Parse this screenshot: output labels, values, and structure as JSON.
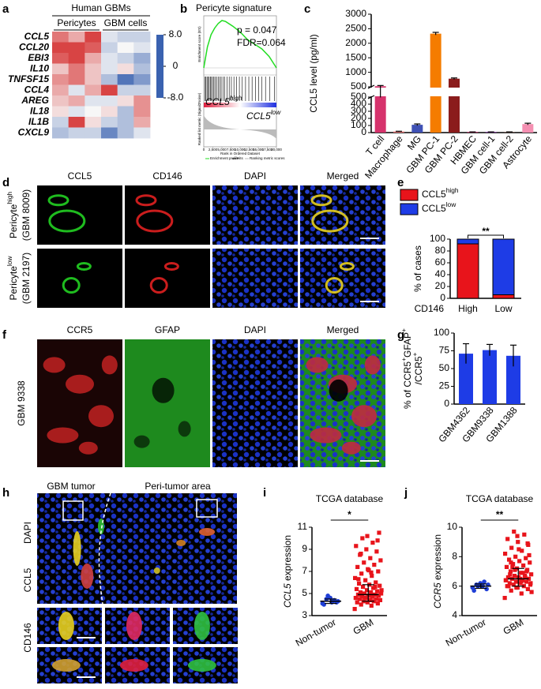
{
  "panel_labels": [
    "a",
    "b",
    "c",
    "d",
    "e",
    "f",
    "g",
    "h",
    "i",
    "j"
  ],
  "d": {
    "columns": [
      "CCL5",
      "CD146",
      "DAPI",
      "Merged"
    ],
    "column_colors": [
      "#1aa01a",
      "#e01010",
      "#1a2fd0",
      "#000000"
    ],
    "rows": [
      {
        "label": "Pericyte",
        "sup": "high",
        "sample": "(GBM 8009)"
      },
      {
        "label": "Pericyte",
        "sup": "low",
        "sample": "(GBM 2197)"
      }
    ]
  },
  "f": {
    "columns": [
      "CCR5",
      "GFAP",
      "DAPI",
      "Merged"
    ],
    "column_colors": [
      "#e01010",
      "#1aa01a",
      "#1a2fd0",
      "#000000"
    ],
    "row_label": "GBM 9338"
  },
  "h": {
    "top_labels": [
      "GBM tumor",
      "Peri-tumor area"
    ],
    "side_labels": [
      "CD146",
      "CCL5",
      "DAPI"
    ],
    "side_colors": [
      "#e01010",
      "#1aa01a",
      "#1a2fd0"
    ]
  },
  "chart_data": [
    {
      "type": "heatmap",
      "title": "Human GBMs",
      "groups": [
        "Pericytes",
        "GBM cells"
      ],
      "group_sizes": [
        3,
        3
      ],
      "rows": [
        "CCL5",
        "CCL20",
        "EBI3",
        "IL10",
        "TNFSF15",
        "CCL4",
        "AREG",
        "IL18",
        "IL1B",
        "CXCL9"
      ],
      "row_colors": [
        "#e01010",
        "#000000",
        "#000000",
        "#000000",
        "#000000",
        "#000000",
        "#000000",
        "#000000",
        "#000000",
        "#000000"
      ],
      "values": [
        [
          5,
          3,
          7,
          -1,
          -2,
          -2
        ],
        [
          7,
          7,
          6,
          -2,
          0,
          -1
        ],
        [
          6,
          7,
          3,
          -1,
          -2,
          -4
        ],
        [
          2,
          5,
          2,
          -1,
          1,
          -3
        ],
        [
          4,
          5,
          2,
          -3,
          -7,
          -5
        ],
        [
          3,
          -1,
          3,
          7,
          -2,
          -2
        ],
        [
          2,
          3,
          -1,
          -1,
          1,
          4
        ],
        [
          1,
          -1,
          0,
          1,
          -3,
          4
        ],
        [
          -2,
          7,
          1,
          -2,
          -3,
          3
        ],
        [
          -3,
          -2,
          -2,
          -6,
          -3,
          -1
        ]
      ],
      "colormap": [
        "#3a62b0",
        "#f7f7f7",
        "#d42a2a"
      ],
      "clim": [
        -8,
        8
      ],
      "cticks": [
        {
          "value": 8,
          "label": "8.0"
        },
        0,
        {
          "value": -8,
          "label": "-8.0"
        }
      ]
    },
    {
      "type": "gsea",
      "title": "Pericyte signature",
      "annotations": [
        "p = 0.047",
        "FDR=0.064"
      ],
      "x": [
        0,
        1000,
        2000,
        3000,
        4000,
        5000,
        6000,
        8000,
        10000,
        12000,
        14000,
        16000,
        18000,
        20000
      ],
      "values": [
        0,
        0.22,
        0.35,
        0.42,
        0.47,
        0.5,
        0.49,
        0.44,
        0.38,
        0.3,
        0.25,
        0.2,
        0.12,
        0.0
      ],
      "xlim": [
        0,
        20000
      ],
      "ylim": [
        -0.05,
        0.55
      ],
      "color": "#22dd22",
      "xticks": [
        0,
        {
          "value": 2500,
          "label": "2,500"
        },
        {
          "value": 5000,
          "label": "5,000"
        },
        {
          "value": 7500,
          "label": "7,500"
        },
        {
          "value": 10000,
          "label": "10,000"
        },
        {
          "value": 12500,
          "label": "12,500"
        },
        {
          "value": 15000,
          "label": "15,000"
        },
        {
          "value": 17500,
          "label": "17,500"
        },
        {
          "value": 20000,
          "label": "20,000"
        }
      ],
      "xlabel": "Rank in Ordered Dataset",
      "ylabel_top": "Enrichment score (ES)",
      "ylabel_bottom": "Ranked list metric (Signal2Noise)",
      "hits": [
        300,
        600,
        900,
        1200,
        1500,
        1800,
        2100,
        2500,
        2800,
        3200,
        3600,
        4000,
        4400,
        4800,
        5300,
        5800,
        6400,
        7000,
        7600,
        8300,
        9000,
        9800,
        10600,
        11500,
        12400,
        13300,
        14200,
        15100,
        16000,
        17000,
        18200,
        19500
      ],
      "high_label": {
        "text": "CCL5",
        "sup": "high"
      },
      "low_label": {
        "text": "CCL5",
        "sup": "low"
      },
      "legend": [
        "Enrichment profile",
        "Hits",
        "Ranking metric scores"
      ]
    },
    {
      "type": "bar",
      "categories": [
        "T cell",
        "Macrophage",
        "MG",
        "GBM PC-1",
        "GBM PC-2",
        "HBMEC",
        "GBM cell-1",
        "GBM cell-2",
        "Astrocyte"
      ],
      "values": [
        520,
        15,
        110,
        2330,
        780,
        8,
        8,
        8,
        120
      ],
      "errors": [
        25,
        4,
        12,
        45,
        25,
        2,
        2,
        2,
        12
      ],
      "colors": [
        "#d6336c",
        "#e57373",
        "#3f51b5",
        "#f57c00",
        "#8b1c1c",
        "#c2185b",
        "#7b1fa2",
        "#5d4037",
        "#f48fb1"
      ],
      "ylabel": "CCL5 level (pg/ml)",
      "ylim": [
        0,
        3000
      ],
      "break": 500,
      "yticks": [
        0,
        100,
        200,
        300,
        400,
        500
      ],
      "yticks_upper": [
        500,
        1000,
        1500,
        2000,
        2500,
        3000
      ]
    },
    {
      "type": "stacked_bar",
      "categories": [
        "High",
        "Low"
      ],
      "xlabel": "CD146",
      "series": [
        {
          "name": "CCL5",
          "name_sup": "high",
          "color": "#e8141b",
          "values": [
            92,
            6
          ]
        },
        {
          "name": "CCL5",
          "name_sup": "low",
          "color": "#1e3ce6",
          "values": [
            8,
            94
          ]
        }
      ],
      "ylim": [
        0,
        100
      ],
      "yticks": [
        0,
        20,
        40,
        60,
        80,
        100
      ],
      "ylabel": "% of cases",
      "significance": "**"
    },
    {
      "type": "bar",
      "categories": [
        "GBM4362",
        "GBM9338",
        "GBM1388"
      ],
      "values": [
        71,
        76,
        68
      ],
      "errors": [
        14,
        8,
        15
      ],
      "color": "#1e3ce6",
      "ylim": [
        0,
        100
      ],
      "yticks": [
        0,
        25,
        50,
        75,
        100
      ],
      "ylabel_lines": [
        [
          "% of CCR5",
          "+",
          "GFAP",
          "+"
        ],
        [
          "/CCR5",
          "+"
        ]
      ]
    },
    {
      "type": "dot",
      "title": "TCGA database",
      "ylabel": [
        "CCL5",
        " expression"
      ],
      "ylabel_italic": [
        true,
        false
      ],
      "ylim": [
        3,
        11
      ],
      "yticks": [
        3,
        5,
        7,
        9,
        11
      ],
      "significance": "*",
      "series": [
        {
          "name": "Non-tumor",
          "color": "#1f3fd6",
          "marker": "circle",
          "values": [
            4.1,
            4.3,
            4.5,
            4.2,
            4.6,
            4.0,
            4.4,
            4.8,
            4.3,
            4.2
          ],
          "center": 4.3,
          "low": 4.1,
          "high": 4.5
        },
        {
          "name": "GBM",
          "color": "#e8141b",
          "marker": "square",
          "values": [
            3.6,
            3.9,
            4.0,
            4.1,
            4.2,
            4.2,
            4.3,
            4.3,
            4.4,
            4.4,
            4.5,
            4.5,
            4.6,
            4.6,
            4.7,
            4.7,
            4.8,
            4.8,
            4.9,
            4.9,
            5.0,
            5.0,
            5.1,
            5.1,
            5.2,
            5.3,
            5.4,
            5.5,
            5.6,
            5.7,
            5.8,
            5.9,
            6.0,
            6.2,
            6.4,
            6.6,
            6.8,
            7.0,
            7.2,
            7.4,
            7.6,
            7.8,
            8.0,
            8.2,
            8.5,
            8.8,
            9.0,
            9.3,
            9.6,
            10.0,
            10.5,
            7.1,
            6.3,
            5.6,
            4.6,
            5.3,
            6.9,
            8.6,
            9.8,
            10.2
          ],
          "center": 4.9,
          "low": 4.3,
          "high": 5.8
        }
      ]
    },
    {
      "type": "dot",
      "title": "TCGA database",
      "ylabel": [
        "CCR5",
        " expression"
      ],
      "ylabel_italic": [
        true,
        false
      ],
      "ylim": [
        4,
        10
      ],
      "yticks": [
        4,
        6,
        8,
        10
      ],
      "significance": "**",
      "series": [
        {
          "name": "Non-tumor",
          "color": "#1f3fd6",
          "marker": "circle",
          "values": [
            5.9,
            6.0,
            6.1,
            5.8,
            6.2,
            5.7,
            6.3,
            6.0,
            6.1,
            6.0
          ],
          "center": 6.0,
          "low": 5.85,
          "high": 6.15
        },
        {
          "name": "GBM",
          "color": "#e8141b",
          "marker": "square",
          "values": [
            5.2,
            5.5,
            5.7,
            5.8,
            5.9,
            6.0,
            6.0,
            6.1,
            6.1,
            6.2,
            6.2,
            6.3,
            6.3,
            6.4,
            6.4,
            6.5,
            6.5,
            6.6,
            6.6,
            6.7,
            6.7,
            6.8,
            6.9,
            7.0,
            7.1,
            7.2,
            7.3,
            7.4,
            7.5,
            7.6,
            7.7,
            7.8,
            7.9,
            8.0,
            8.2,
            8.4,
            8.6,
            8.8,
            9.0,
            9.2,
            9.5,
            9.7,
            6.2,
            6.5,
            6.8,
            7.0,
            5.9,
            6.4,
            6.9,
            7.3,
            8.1,
            8.5,
            6.0,
            6.6,
            7.1,
            5.6,
            6.3,
            7.6,
            8.9,
            9.4
          ],
          "center": 6.5,
          "low": 6.0,
          "high": 7.2
        }
      ]
    }
  ]
}
